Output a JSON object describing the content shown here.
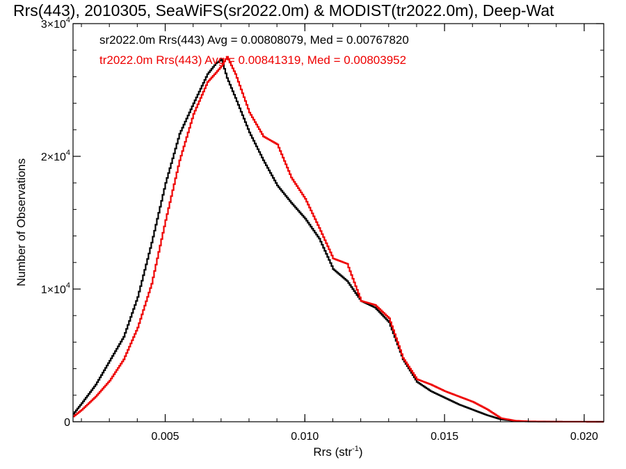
{
  "chart_data": {
    "type": "line",
    "title": "Rrs(443), 2010305, SeaWiFS(sr2022.0m) & MODIST(tr2022.0m), Deep-Wat",
    "xlabel": "Rrs (str",
    "xlabel_sup": "-1",
    "xlabel_close": ")",
    "ylabel": "Number of Observations",
    "xlim": [
      0.0017,
      0.0207
    ],
    "ylim": [
      0,
      30000
    ],
    "x_ticks": [
      {
        "value": 0.005,
        "label": "0.005"
      },
      {
        "value": 0.01,
        "label": "0.010"
      },
      {
        "value": 0.015,
        "label": "0.015"
      },
      {
        "value": 0.02,
        "label": "0.020"
      }
    ],
    "y_ticks": [
      {
        "value": 0,
        "label": "0"
      },
      {
        "value": 10000,
        "label": "1×10",
        "sup": "4"
      },
      {
        "value": 20000,
        "label": "2×10",
        "sup": "4"
      },
      {
        "value": 30000,
        "label": "3×10",
        "sup": "4"
      }
    ],
    "grid": false,
    "legend_position": "top-left",
    "annotations": [
      {
        "text": "sr2022.0m Rrs(443) Avg = 0.00808079, Med = 0.00767820",
        "color": "#000000"
      },
      {
        "text": "tr2022.0m Rrs(443) Avg = 0.00841319, Med = 0.00803952",
        "color": "#ee0000"
      }
    ],
    "series": [
      {
        "color": "#000000",
        "x": [
          0.0017,
          0.002,
          0.0025,
          0.003,
          0.0035,
          0.004,
          0.0045,
          0.005,
          0.0055,
          0.006,
          0.0065,
          0.0068,
          0.007,
          0.0072,
          0.0075,
          0.008,
          0.0085,
          0.009,
          0.0095,
          0.01,
          0.0105,
          0.011,
          0.0115,
          0.012,
          0.0125,
          0.013,
          0.0135,
          0.014,
          0.0145,
          0.015,
          0.0155,
          0.016,
          0.0165,
          0.017,
          0.0175,
          0.018,
          0.019,
          0.0207
        ],
        "y": [
          600,
          1400,
          2800,
          4600,
          6400,
          9400,
          13500,
          18000,
          21700,
          24000,
          26200,
          27000,
          27300,
          25900,
          24400,
          21800,
          19700,
          17800,
          16500,
          15300,
          13800,
          11500,
          10600,
          9100,
          8600,
          7500,
          4700,
          3000,
          2300,
          1800,
          1300,
          900,
          500,
          180,
          60,
          20,
          5,
          0
        ]
      },
      {
        "color": "#ee0000",
        "x": [
          0.0017,
          0.002,
          0.0025,
          0.003,
          0.0035,
          0.004,
          0.0045,
          0.005,
          0.0055,
          0.006,
          0.0065,
          0.0068,
          0.007,
          0.0072,
          0.0075,
          0.008,
          0.0085,
          0.009,
          0.0095,
          0.01,
          0.0105,
          0.011,
          0.0115,
          0.012,
          0.0125,
          0.013,
          0.0135,
          0.014,
          0.0145,
          0.015,
          0.0155,
          0.016,
          0.0165,
          0.017,
          0.0175,
          0.018,
          0.019,
          0.0207
        ],
        "y": [
          400,
          900,
          1900,
          3100,
          4700,
          7100,
          10400,
          15200,
          19700,
          23200,
          25600,
          26300,
          26800,
          27500,
          26200,
          23300,
          21500,
          20900,
          18400,
          16800,
          14600,
          12300,
          11900,
          9100,
          8800,
          7800,
          4800,
          3200,
          2800,
          2300,
          1900,
          1500,
          950,
          270,
          80,
          30,
          5,
          0
        ]
      }
    ]
  }
}
